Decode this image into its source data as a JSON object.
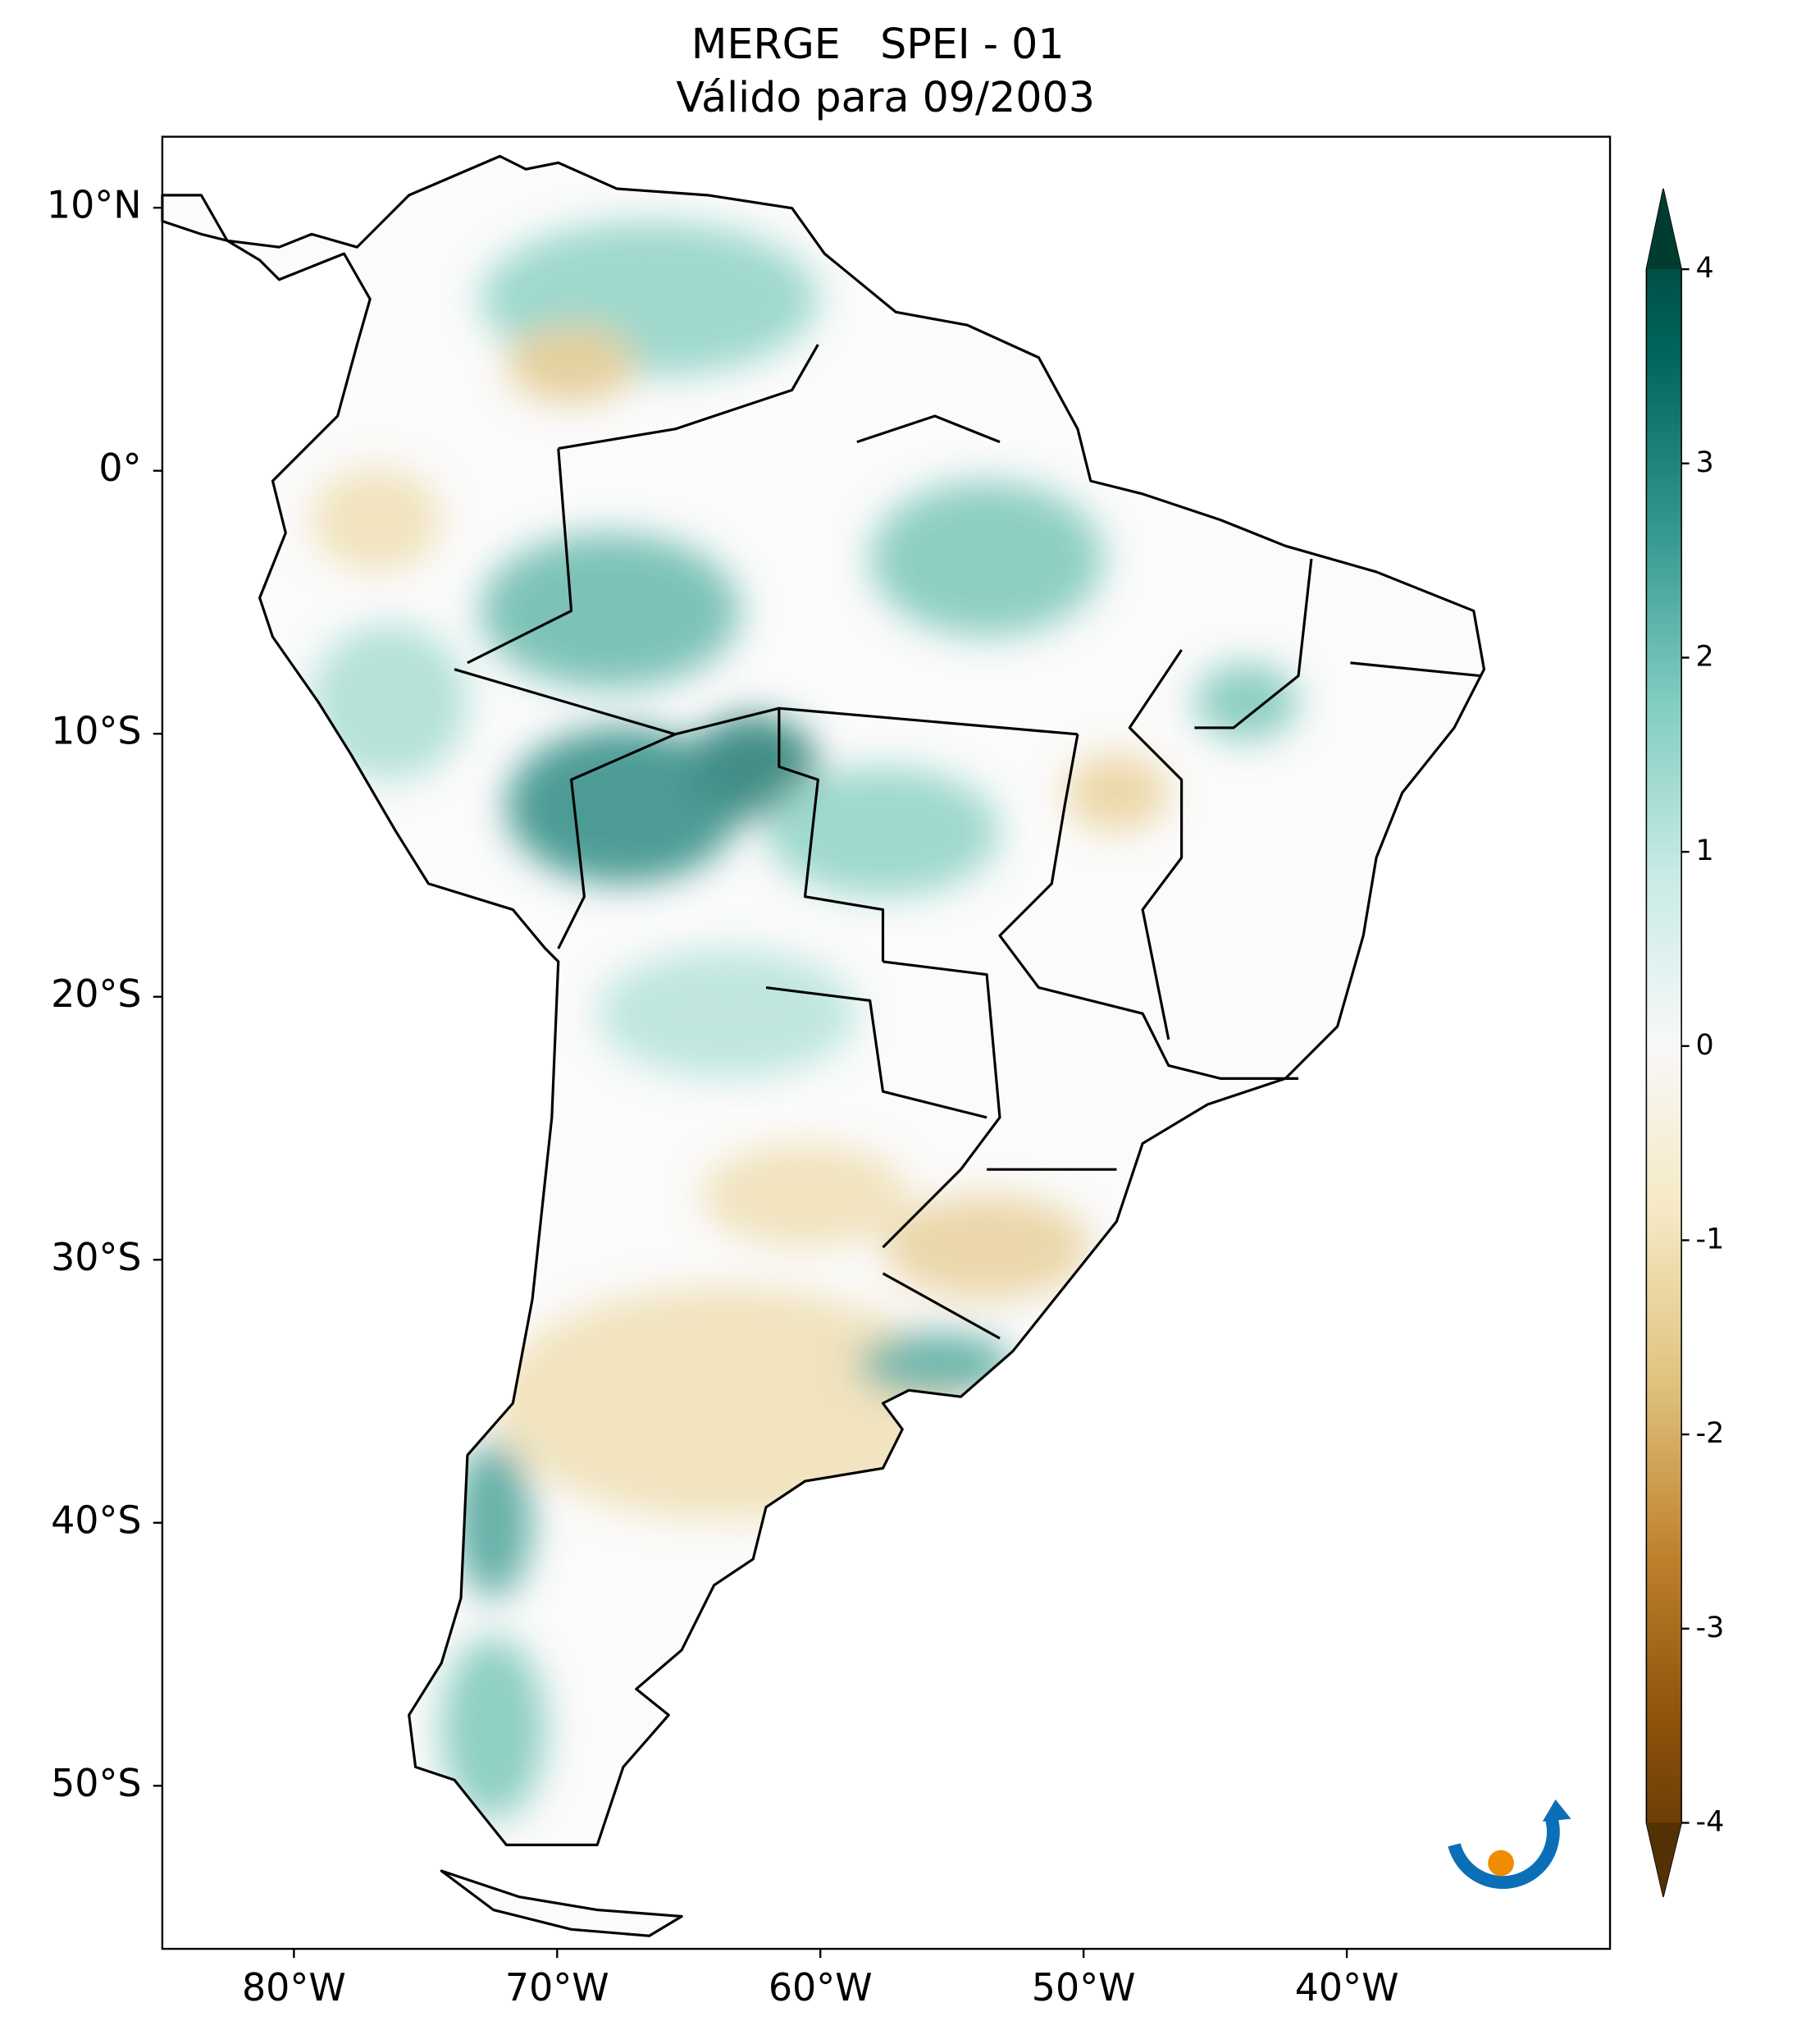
{
  "chart_data": {
    "type": "map",
    "title": "MERGE   SPEI - 01",
    "subtitle": "Válido para 09/2003",
    "xlim": [
      -85,
      -30
    ],
    "ylim": [
      -56.2,
      12.7
    ],
    "xticks": [
      {
        "value": -80,
        "label": "80°W"
      },
      {
        "value": -70,
        "label": "70°W"
      },
      {
        "value": -60,
        "label": "60°W"
      },
      {
        "value": -50,
        "label": "50°W"
      },
      {
        "value": -40,
        "label": "40°W"
      }
    ],
    "yticks": [
      {
        "value": 10,
        "label": "10°N"
      },
      {
        "value": 0,
        "label": "0°"
      },
      {
        "value": -10,
        "label": "10°S"
      },
      {
        "value": -20,
        "label": "20°S"
      },
      {
        "value": -30,
        "label": "30°S"
      },
      {
        "value": -40,
        "label": "40°S"
      },
      {
        "value": -50,
        "label": "50°S"
      }
    ],
    "colorbar": {
      "lim": [
        -4,
        4
      ],
      "ticks": [
        -4,
        -3,
        -2,
        -1,
        0,
        1,
        2,
        3,
        4
      ]
    },
    "logo": "INPE"
  }
}
